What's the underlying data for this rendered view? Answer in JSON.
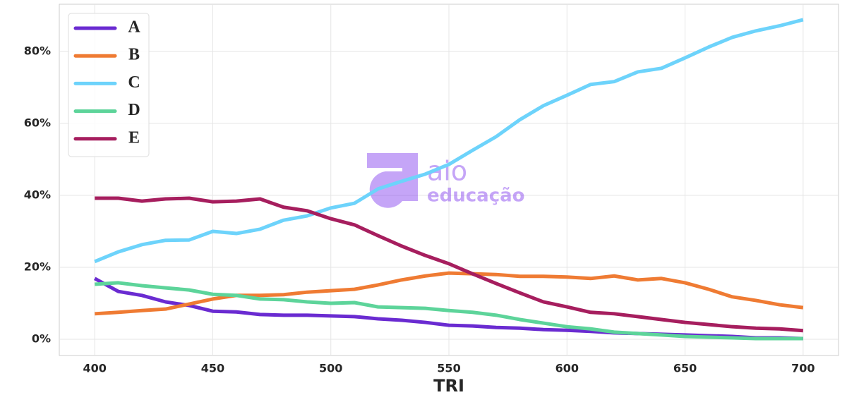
{
  "chart_data": {
    "type": "line",
    "xlabel": "TRI",
    "watermark": [
      "aio",
      "educação"
    ],
    "x": [
      400,
      410,
      420,
      430,
      440,
      450,
      460,
      470,
      480,
      490,
      500,
      510,
      520,
      530,
      540,
      550,
      560,
      570,
      580,
      590,
      600,
      610,
      620,
      630,
      640,
      650,
      660,
      670,
      680,
      690,
      700
    ],
    "series": [
      {
        "name": "A",
        "color": "#6a2bd1",
        "values": [
          16.9,
          13.3,
          12.2,
          10.4,
          9.4,
          7.8,
          7.6,
          6.9,
          6.7,
          6.7,
          6.5,
          6.3,
          5.7,
          5.3,
          4.7,
          3.9,
          3.7,
          3.3,
          3.1,
          2.7,
          2.5,
          2.2,
          1.8,
          1.6,
          1.4,
          1.2,
          1.0,
          0.8,
          0.4,
          0.4,
          0.2
        ]
      },
      {
        "name": "B",
        "color": "#ef7b33",
        "values": [
          7.1,
          7.5,
          8.0,
          8.4,
          9.8,
          11.2,
          12.2,
          12.2,
          12.4,
          13.1,
          13.5,
          13.9,
          15.1,
          16.5,
          17.6,
          18.4,
          18.2,
          18.0,
          17.5,
          17.5,
          17.3,
          16.9,
          17.6,
          16.5,
          16.9,
          15.7,
          13.9,
          11.8,
          10.8,
          9.6,
          8.8
        ]
      },
      {
        "name": "C",
        "color": "#6dd3fb",
        "values": [
          21.6,
          24.3,
          26.3,
          27.5,
          27.6,
          30.0,
          29.4,
          30.6,
          33.1,
          34.3,
          36.5,
          37.8,
          41.8,
          43.9,
          45.9,
          48.6,
          52.5,
          56.3,
          61.0,
          64.9,
          67.8,
          70.8,
          71.6,
          74.3,
          75.3,
          78.2,
          81.2,
          83.9,
          85.7,
          87.1,
          88.8
        ]
      },
      {
        "name": "D",
        "color": "#5dd49a",
        "values": [
          15.3,
          15.7,
          14.9,
          14.3,
          13.7,
          12.5,
          12.2,
          11.2,
          11.0,
          10.4,
          10.0,
          10.2,
          9.0,
          8.8,
          8.6,
          8.0,
          7.5,
          6.7,
          5.5,
          4.5,
          3.5,
          2.9,
          2.0,
          1.6,
          1.2,
          0.8,
          0.6,
          0.4,
          0.2,
          0.2,
          0.2
        ]
      },
      {
        "name": "E",
        "color": "#a61e5e",
        "values": [
          39.2,
          39.2,
          38.4,
          39.0,
          39.2,
          38.2,
          38.4,
          39.0,
          36.7,
          35.7,
          33.5,
          31.8,
          28.8,
          25.9,
          23.3,
          21.0,
          18.2,
          15.5,
          12.9,
          10.4,
          9.0,
          7.5,
          7.1,
          6.3,
          5.5,
          4.7,
          4.1,
          3.5,
          3.1,
          2.9,
          2.4
        ]
      }
    ],
    "xlim": [
      385,
      715
    ],
    "xticks": [
      400,
      450,
      500,
      550,
      600,
      650,
      700
    ],
    "ylim": [
      -4.5,
      93.1
    ],
    "yticks": [
      {
        "value": 0,
        "label": "0%"
      },
      {
        "value": 20,
        "label": "20%"
      },
      {
        "value": 40,
        "label": "40%"
      },
      {
        "value": 60,
        "label": "60%"
      },
      {
        "value": 80,
        "label": "80%"
      }
    ],
    "grid": true,
    "legend": "upper-left"
  }
}
